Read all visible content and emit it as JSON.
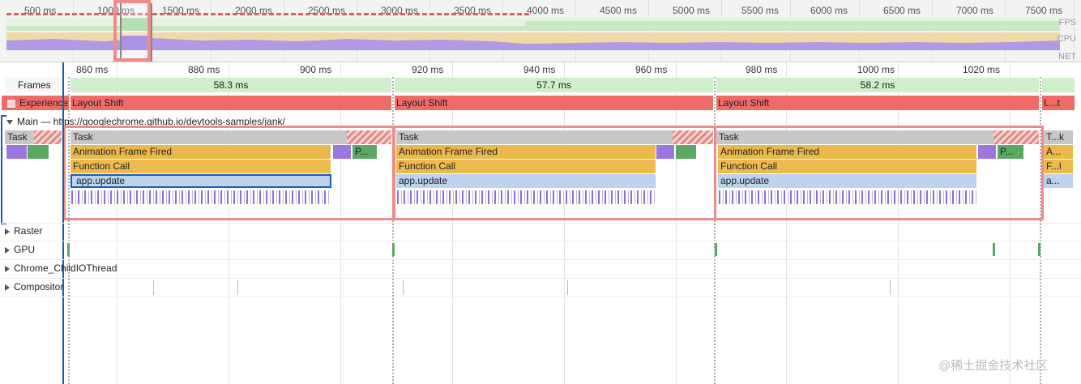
{
  "overview": {
    "ticks": [
      "500 ms",
      "1000 ms",
      "1500 ms",
      "2000 ms",
      "2500 ms",
      "3000 ms",
      "3500 ms",
      "4000 ms",
      "4500 ms",
      "5000 ms",
      "5500 ms",
      "6000 ms",
      "6500 ms",
      "7000 ms",
      "7500 ms"
    ],
    "lanes": {
      "fps": "FPS",
      "cpu": "CPU",
      "net": "NET"
    }
  },
  "ruler": {
    "labels": [
      "860 ms",
      "880 ms",
      "900 ms",
      "920 ms",
      "940 ms",
      "960 ms",
      "980 ms",
      "1000 ms",
      "1020 ms"
    ]
  },
  "tracks": {
    "frames": {
      "label": "Frames",
      "durations": [
        "58.3 ms",
        "57.7 ms",
        "58.2 ms"
      ]
    },
    "experience": {
      "label": "Experience",
      "events": [
        "Layout Shift",
        "Layout Shift",
        "Layout Shift",
        "L...t"
      ]
    },
    "main": {
      "label": "Main — https://googlechrome.github.io/devtools-samples/jank/",
      "first_task": "Task",
      "groups": [
        {
          "task": "Task",
          "animation": "Animation Frame Fired",
          "function": "Function Call",
          "update": "app.update",
          "extra": "P..."
        },
        {
          "task": "Task",
          "animation": "Animation Frame Fired",
          "function": "Function Call",
          "update": "app.update"
        },
        {
          "task": "Task",
          "animation": "Animation Frame Fired",
          "function": "Function Call",
          "update": "app.update",
          "extra": "P..."
        }
      ],
      "tail": {
        "task": "T...k",
        "animation": "A...",
        "function": "F...l",
        "update": "a..."
      }
    },
    "collapsed": [
      "Raster",
      "GPU",
      "Chrome_ChildIOThread",
      "Compositor"
    ]
  },
  "watermark": "@稀土掘金技术社区",
  "colors": {
    "task": "#c7c7c7",
    "animation": "#ebb84b",
    "app_update": "#bcd3ec",
    "layout_shift": "#ef6b68",
    "frame": "#cfeecb",
    "highlight": "#ef8b88",
    "selection": "#1a5bb5"
  }
}
